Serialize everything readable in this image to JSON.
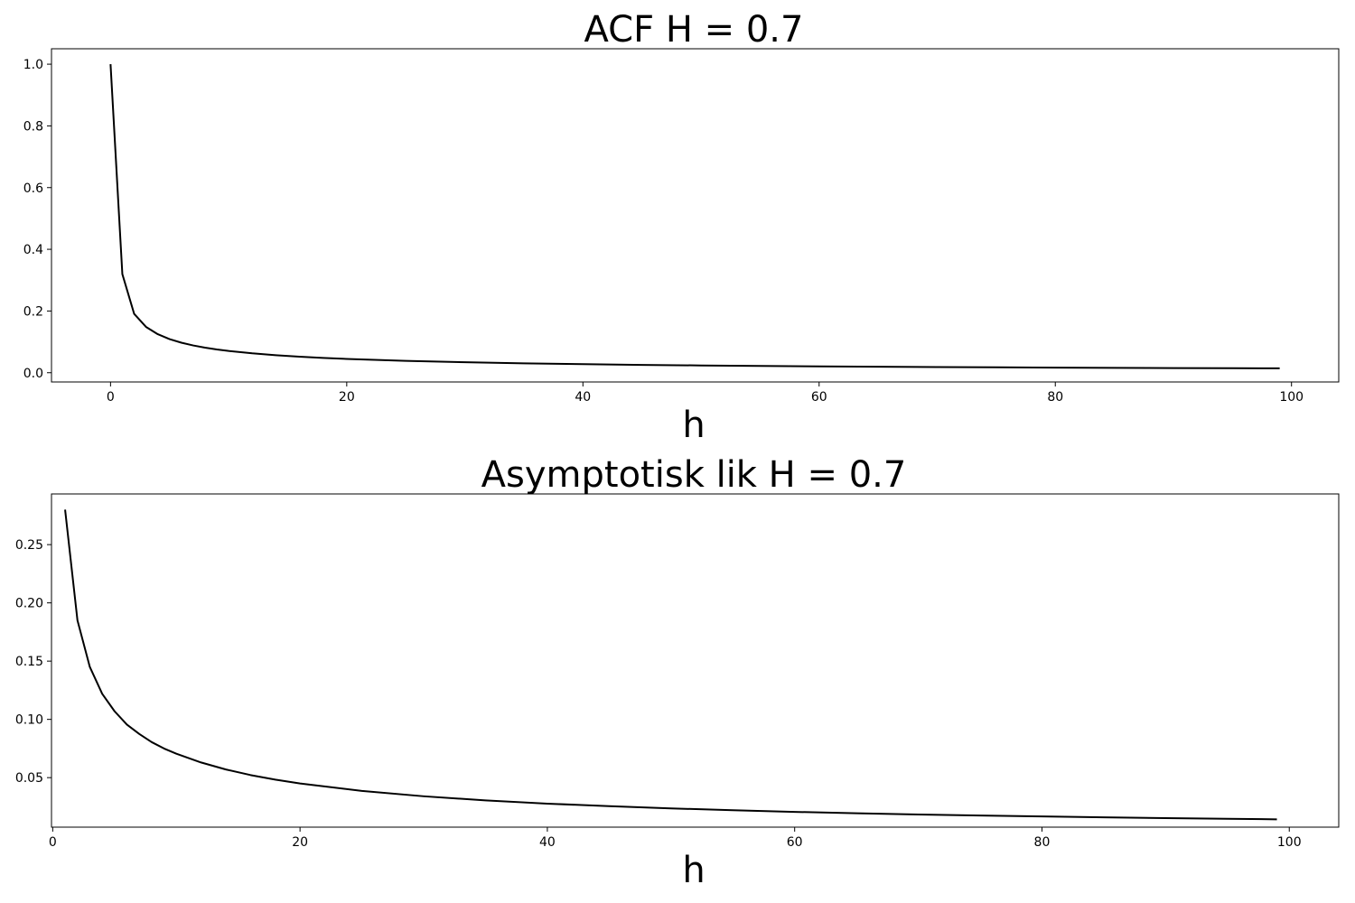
{
  "chart_data": [
    {
      "type": "line",
      "title": "ACF  H = 0.7",
      "xlabel": "h",
      "ylabel": "",
      "xlim": [
        -5,
        104
      ],
      "ylim": [
        -0.03,
        1.05
      ],
      "xticks": [
        0,
        20,
        40,
        60,
        80,
        100
      ],
      "yticks": [
        0.0,
        0.2,
        0.4,
        0.6,
        0.8,
        1.0
      ],
      "ytick_labels": [
        "0.0",
        "0.2",
        "0.4",
        "0.6",
        "0.8",
        "1.0"
      ],
      "grid": false,
      "line_color": "#000000",
      "x": [
        0,
        1,
        2,
        3,
        4,
        5,
        6,
        7,
        8,
        9,
        10,
        12,
        14,
        16,
        18,
        20,
        25,
        30,
        35,
        40,
        45,
        50,
        55,
        60,
        65,
        70,
        75,
        80,
        85,
        90,
        95,
        99
      ],
      "y": [
        1.0,
        0.3195,
        0.1908,
        0.1486,
        0.1248,
        0.1089,
        0.0973,
        0.0884,
        0.0813,
        0.0755,
        0.0706,
        0.0628,
        0.0568,
        0.052,
        0.048,
        0.0447,
        0.0384,
        0.0339,
        0.0304,
        0.0277,
        0.0254,
        0.0236,
        0.022,
        0.0206,
        0.0194,
        0.0183,
        0.0174,
        0.0166,
        0.0158,
        0.0151,
        0.0145,
        0.0141
      ]
    },
    {
      "type": "line",
      "title": "Asymptotisk lik H = 0.7",
      "xlabel": "h",
      "ylabel": "",
      "xlim": [
        -0.1,
        104
      ],
      "ylim": [
        0.0075,
        0.2935
      ],
      "xticks": [
        0,
        20,
        40,
        60,
        80,
        100
      ],
      "yticks": [
        0.05,
        0.1,
        0.15,
        0.2,
        0.25
      ],
      "ytick_labels": [
        "0.05",
        "0.10",
        "0.15",
        "0.20",
        "0.25"
      ],
      "grid": false,
      "line_color": "#000000",
      "x": [
        1,
        2,
        3,
        4,
        5,
        6,
        7,
        8,
        9,
        10,
        12,
        14,
        16,
        18,
        20,
        25,
        30,
        35,
        40,
        45,
        50,
        55,
        60,
        65,
        70,
        75,
        80,
        85,
        90,
        95,
        99
      ],
      "y": [
        0.28,
        0.185,
        0.145,
        0.122,
        0.107,
        0.0955,
        0.0875,
        0.0805,
        0.075,
        0.0705,
        0.063,
        0.057,
        0.0522,
        0.0483,
        0.045,
        0.0386,
        0.034,
        0.0305,
        0.0277,
        0.0255,
        0.0236,
        0.022,
        0.0206,
        0.0194,
        0.0184,
        0.0175,
        0.0167,
        0.0159,
        0.0153,
        0.0147,
        0.0142
      ]
    }
  ]
}
